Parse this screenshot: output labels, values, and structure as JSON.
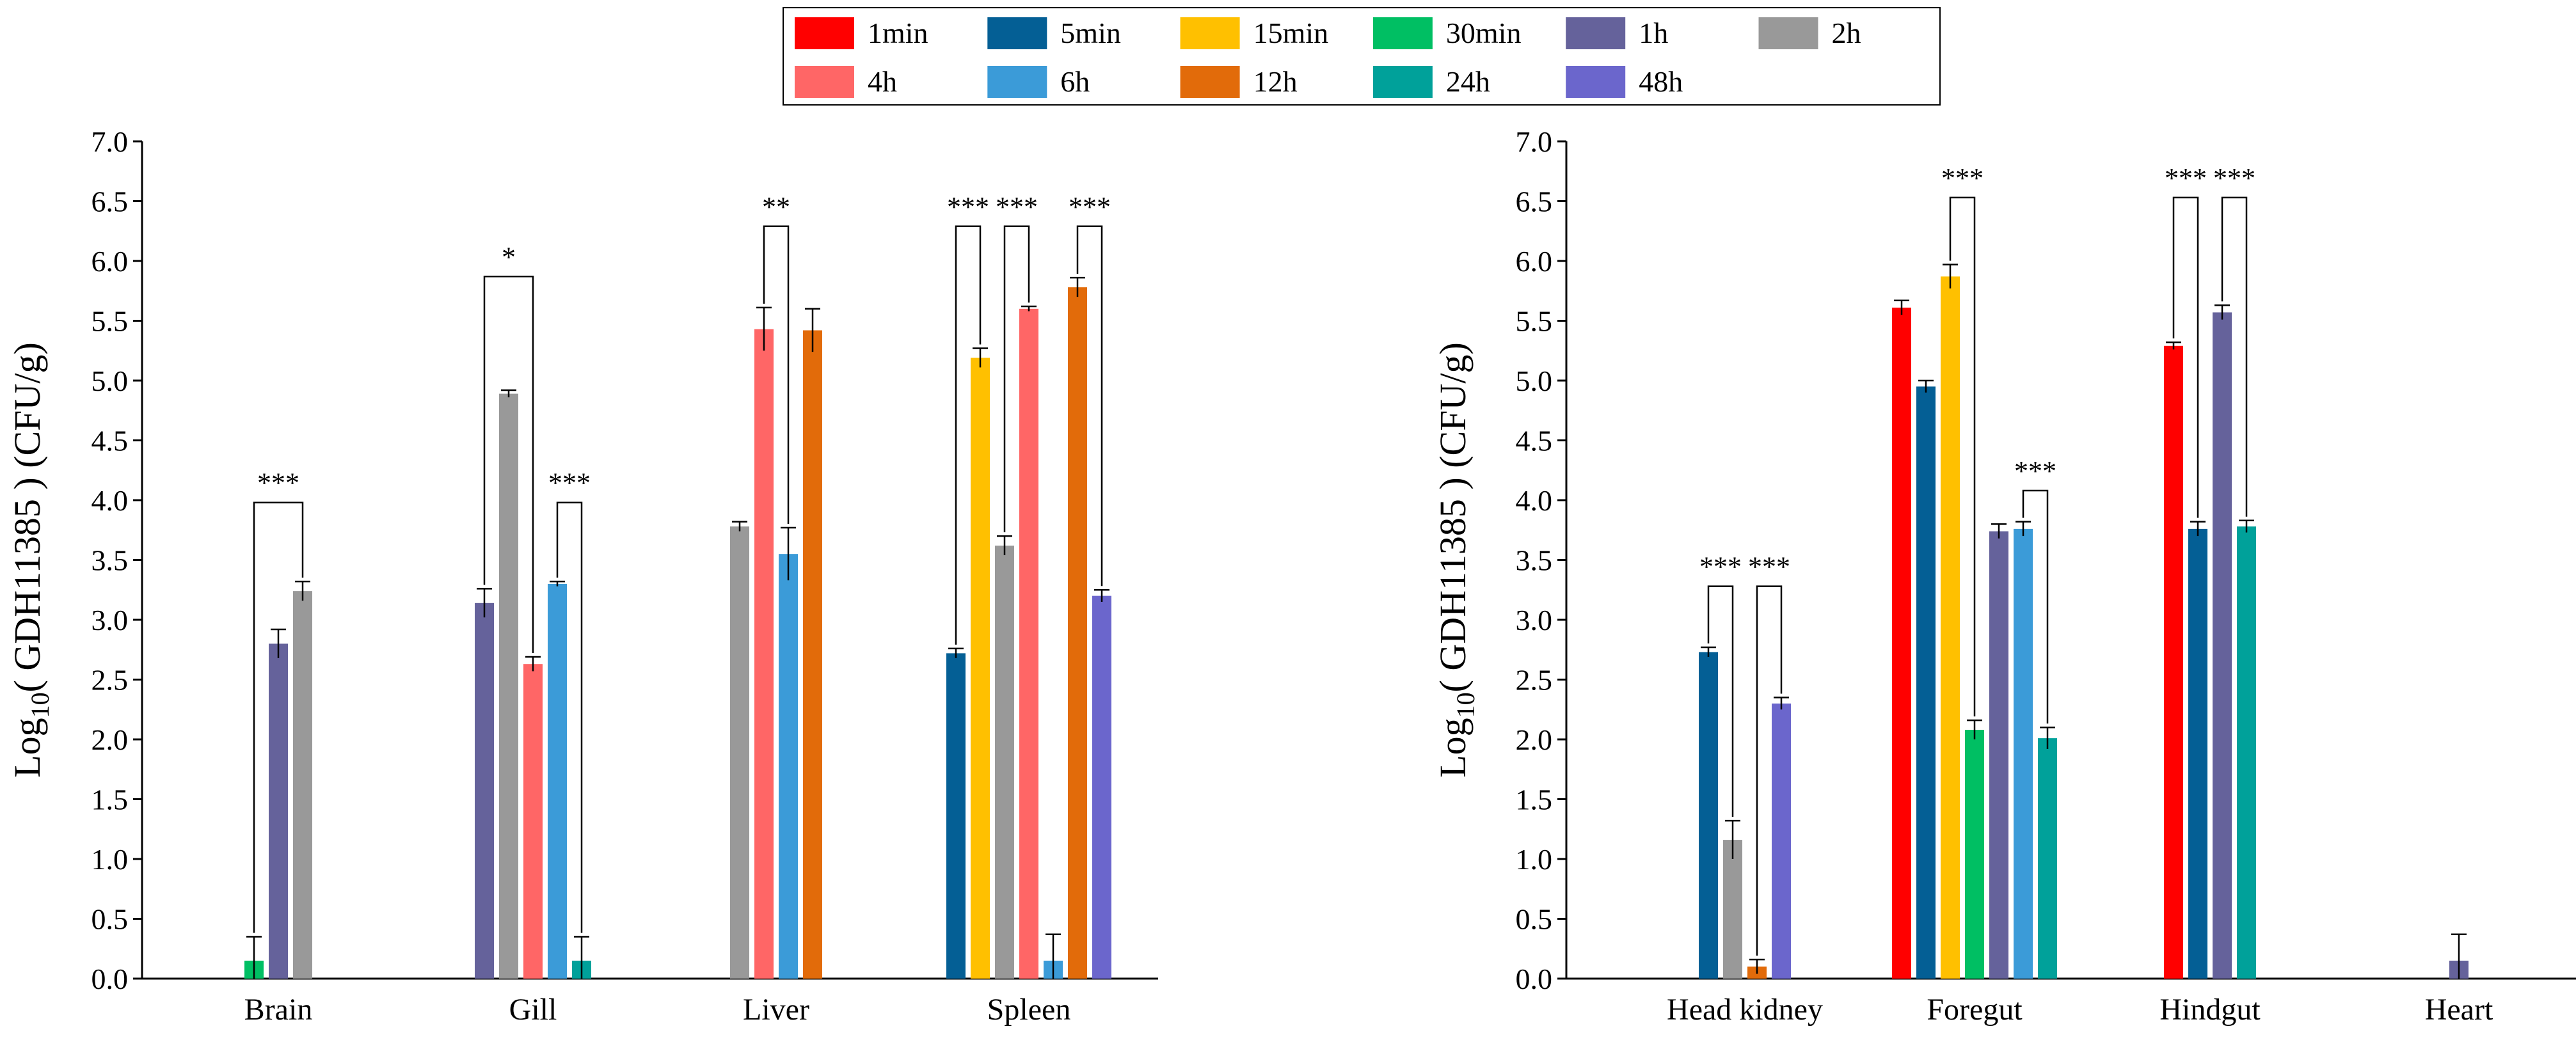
{
  "legend": {
    "items": [
      {
        "name": "1min",
        "color": "#FF0000"
      },
      {
        "name": "5min",
        "color": "#045F95"
      },
      {
        "name": "15min",
        "color": "#FFC000"
      },
      {
        "name": "30min",
        "color": "#00BF63"
      },
      {
        "name": "1h",
        "color": "#65629B"
      },
      {
        "name": "2h",
        "color": "#999999"
      },
      {
        "name": "4h",
        "color": "#FF6666"
      },
      {
        "name": "6h",
        "color": "#3B9BD8"
      },
      {
        "name": "12h",
        "color": "#E26B0A"
      },
      {
        "name": "24h",
        "color": "#00A19A"
      },
      {
        "name": "48h",
        "color": "#6B66CC"
      }
    ]
  },
  "chart_data": [
    {
      "type": "bar",
      "ylabel_main": "Log",
      "ylabel_sub": "10",
      "ylabel_rest": "( GDH11385 ) (CFU/g)",
      "xlabel": "",
      "ylim": [
        0,
        7
      ],
      "yticks": [
        "0.0",
        "0.5",
        "1.0",
        "1.5",
        "2.0",
        "2.5",
        "3.0",
        "3.5",
        "4.0",
        "4.5",
        "5.0",
        "5.5",
        "6.0",
        "6.5",
        "7.0"
      ],
      "categories": [
        "Brain",
        "Gill",
        "Liver",
        "Spleen"
      ],
      "groups": [
        {
          "category": "Brain",
          "bars": [
            {
              "series": "30min",
              "value": 0.15,
              "err": 0.2
            },
            {
              "series": "1h",
              "value": 2.8,
              "err": 0.12
            },
            {
              "series": "2h",
              "value": 3.24,
              "err": 0.08
            }
          ]
        },
        {
          "category": "Gill",
          "bars": [
            {
              "series": "1h",
              "value": 3.14,
              "err": 0.12
            },
            {
              "series": "2h",
              "value": 4.89,
              "err": 0.03
            },
            {
              "series": "4h",
              "value": 2.63,
              "err": 0.06
            },
            {
              "series": "6h",
              "value": 3.3,
              "err": 0.02
            },
            {
              "series": "24h",
              "value": 0.15,
              "err": 0.2
            }
          ]
        },
        {
          "category": "Liver",
          "bars": [
            {
              "series": "2h",
              "value": 3.78,
              "err": 0.04
            },
            {
              "series": "4h",
              "value": 5.43,
              "err": 0.18
            },
            {
              "series": "6h",
              "value": 3.55,
              "err": 0.22
            },
            {
              "series": "12h",
              "value": 5.42,
              "err": 0.18
            }
          ]
        },
        {
          "category": "Spleen",
          "bars": [
            {
              "series": "5min",
              "value": 2.72,
              "err": 0.04
            },
            {
              "series": "15min",
              "value": 5.19,
              "err": 0.08
            },
            {
              "series": "2h",
              "value": 3.62,
              "err": 0.08
            },
            {
              "series": "4h",
              "value": 5.6,
              "err": 0.02
            },
            {
              "series": "6h",
              "value": 0.15,
              "err": 0.22
            },
            {
              "series": "12h",
              "value": 5.78,
              "err": 0.08
            },
            {
              "series": "48h",
              "value": 3.2,
              "err": 0.05
            }
          ]
        }
      ],
      "significance": [
        {
          "label": "***",
          "from": [
            "Brain",
            "30min"
          ],
          "to": [
            "Brain",
            "2h"
          ],
          "level": 3.98
        },
        {
          "label": "*",
          "from": [
            "Gill",
            "1h"
          ],
          "to": [
            "Gill",
            "4h"
          ],
          "level": 5.87
        },
        {
          "label": "***",
          "from": [
            "Gill",
            "6h"
          ],
          "to": [
            "Gill",
            "24h"
          ],
          "level": 3.98
        },
        {
          "label": "**",
          "from": [
            "Liver",
            "4h"
          ],
          "to": [
            "Liver",
            "6h"
          ],
          "level": 6.29
        },
        {
          "label": "***",
          "from": [
            "Spleen",
            "5min"
          ],
          "to": [
            "Spleen",
            "15min"
          ],
          "level": 6.29
        },
        {
          "label": "***",
          "from": [
            "Spleen",
            "2h"
          ],
          "to": [
            "Spleen",
            "4h"
          ],
          "level": 6.29
        },
        {
          "label": "***",
          "from": [
            "Spleen",
            "12h"
          ],
          "to": [
            "Spleen",
            "48h"
          ],
          "level": 6.29
        }
      ]
    },
    {
      "type": "bar",
      "ylabel_main": "Log",
      "ylabel_sub": "10",
      "ylabel_rest": "( GDH11385 ) (CFU/g)",
      "xlabel": "",
      "ylim": [
        0,
        7
      ],
      "yticks": [
        "0.0",
        "0.5",
        "1.0",
        "1.5",
        "2.0",
        "2.5",
        "3.0",
        "3.5",
        "4.0",
        "4.5",
        "5.0",
        "5.5",
        "6.0",
        "6.5",
        "7.0"
      ],
      "categories": [
        "Head kidney",
        "Foregut",
        "Hindgut",
        "Heart"
      ],
      "groups": [
        {
          "category": "Head kidney",
          "bars": [
            {
              "series": "5min",
              "value": 2.73,
              "err": 0.04
            },
            {
              "series": "2h",
              "value": 1.16,
              "err": 0.16
            },
            {
              "series": "12h",
              "value": 0.1,
              "err": 0.06
            },
            {
              "series": "48h",
              "value": 2.3,
              "err": 0.05
            }
          ]
        },
        {
          "category": "Foregut",
          "bars": [
            {
              "series": "1min",
              "value": 5.61,
              "err": 0.06
            },
            {
              "series": "5min",
              "value": 4.95,
              "err": 0.05
            },
            {
              "series": "15min",
              "value": 5.87,
              "err": 0.1
            },
            {
              "series": "30min",
              "value": 2.08,
              "err": 0.08
            },
            {
              "series": "1h",
              "value": 3.74,
              "err": 0.06
            },
            {
              "series": "6h",
              "value": 3.76,
              "err": 0.06
            },
            {
              "series": "24h",
              "value": 2.01,
              "err": 0.09
            }
          ]
        },
        {
          "category": "Hindgut",
          "bars": [
            {
              "series": "1min",
              "value": 5.29,
              "err": 0.03
            },
            {
              "series": "5min",
              "value": 3.76,
              "err": 0.06
            },
            {
              "series": "1h",
              "value": 5.57,
              "err": 0.06
            },
            {
              "series": "24h",
              "value": 3.78,
              "err": 0.05
            }
          ]
        },
        {
          "category": "Heart",
          "bars": [
            {
              "series": "1h",
              "value": 0.15,
              "err": 0.22
            }
          ]
        }
      ],
      "significance": [
        {
          "label": "***",
          "from": [
            "Head kidney",
            "5min"
          ],
          "to": [
            "Head kidney",
            "2h"
          ],
          "level": 3.28
        },
        {
          "label": "***",
          "from": [
            "Head kidney",
            "12h"
          ],
          "to": [
            "Head kidney",
            "48h"
          ],
          "level": 3.28
        },
        {
          "label": "***",
          "from": [
            "Foregut",
            "15min"
          ],
          "to": [
            "Foregut",
            "30min"
          ],
          "level": 6.53
        },
        {
          "label": "***",
          "from": [
            "Foregut",
            "6h"
          ],
          "to": [
            "Foregut",
            "24h"
          ],
          "level": 4.08
        },
        {
          "label": "***",
          "from": [
            "Hindgut",
            "1min"
          ],
          "to": [
            "Hindgut",
            "5min"
          ],
          "level": 6.53
        },
        {
          "label": "***",
          "from": [
            "Hindgut",
            "1h"
          ],
          "to": [
            "Hindgut",
            "24h"
          ],
          "level": 6.53
        }
      ]
    }
  ]
}
